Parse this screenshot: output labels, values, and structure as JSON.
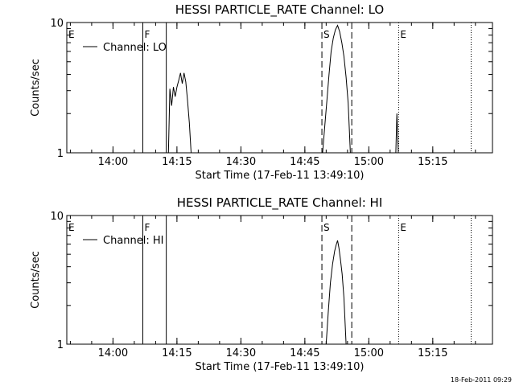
{
  "chart_data": [
    {
      "type": "line",
      "title": "HESSI PARTICLE_RATE Channel: LO",
      "xlabel": "Start Time (17-Feb-11 13:49:10)",
      "ylabel": "Counts/sec",
      "xlim": [
        "13:49:10",
        "15:29:00"
      ],
      "ylim": [
        1,
        10
      ],
      "yscale": "log",
      "x_ticks": [
        "14:00",
        "14:15",
        "14:30",
        "14:45",
        "15:00",
        "15:15"
      ],
      "y_ticks": [
        "1",
        "10"
      ],
      "legend": {
        "label": "Channel: LO",
        "position": "top-left"
      },
      "markers": [
        {
          "label": "E",
          "time": "13:49:10",
          "style": "none"
        },
        {
          "label": "F",
          "time": "14:07:00",
          "style": "solid"
        },
        {
          "label": "",
          "time": "14:12:30",
          "style": "solid"
        },
        {
          "label": "S",
          "time": "14:49:00",
          "style": "dashed"
        },
        {
          "label": "",
          "time": "14:56:00",
          "style": "dashed"
        },
        {
          "label": "E",
          "time": "15:07:00",
          "style": "dotted"
        },
        {
          "label": "",
          "time": "15:24:00",
          "style": "dotted"
        }
      ],
      "series": [
        {
          "name": "Channel: LO",
          "segments": [
            [
              [
                "14:13:00",
                1.0
              ],
              [
                "14:13:20",
                3.1
              ],
              [
                "14:13:45",
                2.3
              ],
              [
                "14:14:10",
                3.2
              ],
              [
                "14:14:35",
                2.7
              ],
              [
                "14:15:00",
                3.2
              ],
              [
                "14:15:25",
                3.6
              ],
              [
                "14:15:50",
                4.1
              ],
              [
                "14:16:15",
                3.4
              ],
              [
                "14:16:40",
                4.1
              ],
              [
                "14:17:05",
                3.5
              ],
              [
                "14:17:30",
                2.5
              ],
              [
                "14:17:55",
                1.7
              ],
              [
                "14:18:20",
                1.0
              ]
            ],
            [
              [
                "14:49:10",
                1.0
              ],
              [
                "14:49:40",
                1.6
              ],
              [
                "14:50:10",
                2.5
              ],
              [
                "14:50:40",
                4.0
              ],
              [
                "14:51:10",
                6.0
              ],
              [
                "14:51:40",
                7.6
              ],
              [
                "14:52:10",
                8.8
              ],
              [
                "14:52:40",
                9.5
              ],
              [
                "14:53:10",
                8.5
              ],
              [
                "14:53:40",
                7.0
              ],
              [
                "14:54:10",
                5.5
              ],
              [
                "14:54:40",
                3.8
              ],
              [
                "14:55:10",
                2.4
              ],
              [
                "14:55:40",
                1.0
              ]
            ],
            [
              [
                "15:06:20",
                1.0
              ],
              [
                "15:06:35",
                2.0
              ],
              [
                "15:06:55",
                1.0
              ]
            ]
          ]
        }
      ]
    },
    {
      "type": "line",
      "title": "HESSI PARTICLE_RATE Channel: HI",
      "xlabel": "Start Time (17-Feb-11 13:49:10)",
      "ylabel": "Counts/sec",
      "xlim": [
        "13:49:10",
        "15:29:00"
      ],
      "ylim": [
        1,
        10
      ],
      "yscale": "log",
      "x_ticks": [
        "14:00",
        "14:15",
        "14:30",
        "14:45",
        "15:00",
        "15:15"
      ],
      "y_ticks": [
        "1",
        "10"
      ],
      "legend": {
        "label": "Channel: HI",
        "position": "top-left"
      },
      "markers": [
        {
          "label": "E",
          "time": "13:49:10",
          "style": "none"
        },
        {
          "label": "F",
          "time": "14:07:00",
          "style": "solid"
        },
        {
          "label": "",
          "time": "14:12:30",
          "style": "solid"
        },
        {
          "label": "S",
          "time": "14:49:00",
          "style": "dashed"
        },
        {
          "label": "",
          "time": "14:56:00",
          "style": "dashed"
        },
        {
          "label": "E",
          "time": "15:07:00",
          "style": "dotted"
        },
        {
          "label": "",
          "time": "15:24:00",
          "style": "dotted"
        }
      ],
      "series": [
        {
          "name": "Channel: HI",
          "segments": [
            [
              [
                "14:50:00",
                1.0
              ],
              [
                "14:50:30",
                1.8
              ],
              [
                "14:51:00",
                3.0
              ],
              [
                "14:51:30",
                4.2
              ],
              [
                "14:52:00",
                5.3
              ],
              [
                "14:52:20",
                5.9
              ],
              [
                "14:52:40",
                6.4
              ],
              [
                "14:53:00",
                5.6
              ],
              [
                "14:53:20",
                4.6
              ],
              [
                "14:53:45",
                3.5
              ],
              [
                "14:54:10",
                2.3
              ],
              [
                "14:54:40",
                1.0
              ]
            ]
          ]
        }
      ]
    }
  ],
  "footer": {
    "timestamp": "18-Feb-2011 09:29"
  }
}
